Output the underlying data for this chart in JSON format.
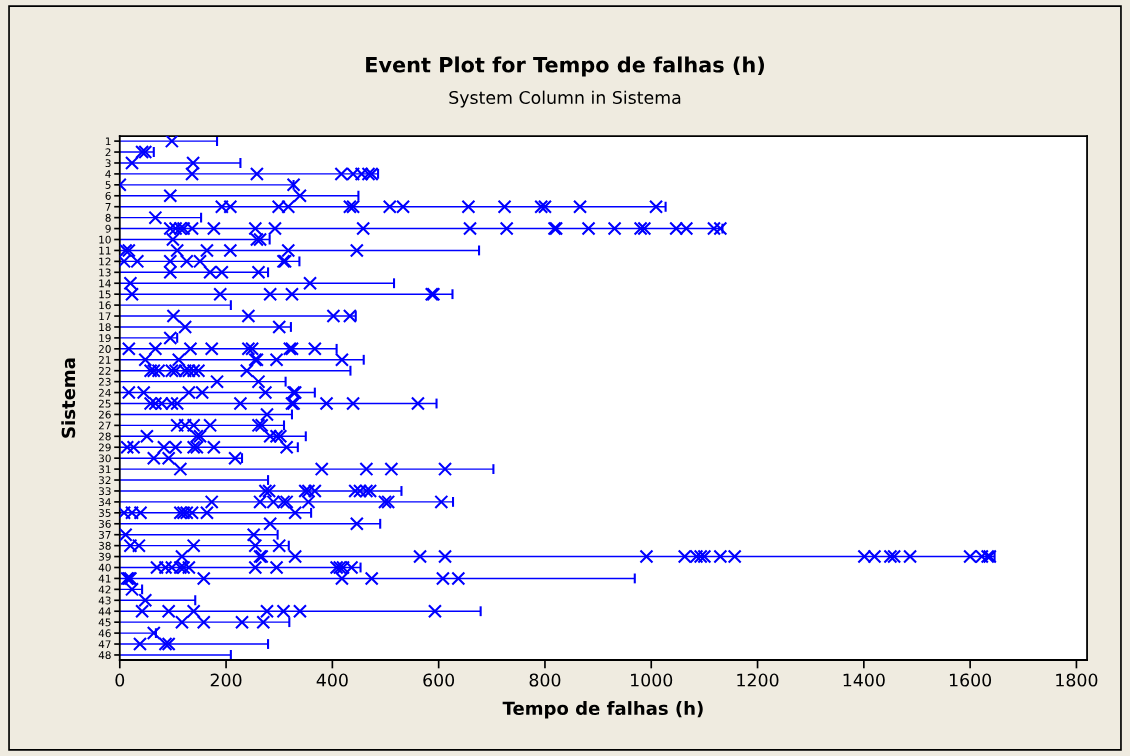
{
  "chart_data": {
    "type": "bar",
    "orientation": "horizontal",
    "title": "Event Plot for Tempo de falhas (h)",
    "subtitle": "System Column in Sistema",
    "xlabel": "Tempo de falhas (h)",
    "ylabel": "Sistema",
    "categories": [
      "1",
      "2",
      "3",
      "4",
      "5",
      "6",
      "7",
      "8",
      "9",
      "10",
      "11",
      "12",
      "13",
      "14",
      "15",
      "16",
      "17",
      "18",
      "19",
      "20",
      "21",
      "22",
      "23",
      "24",
      "25",
      "26",
      "27",
      "28",
      "29",
      "30",
      "31",
      "32",
      "33",
      "34",
      "35",
      "36",
      "37",
      "38",
      "39",
      "40",
      "41",
      "42",
      "43",
      "44",
      "45",
      "46",
      "47",
      "48"
    ],
    "xlim": [
      0,
      1820
    ],
    "xticks": [
      0,
      200,
      400,
      600,
      800,
      1000,
      1200,
      1400,
      1600,
      1800
    ],
    "grid": false,
    "legend": false,
    "series": [
      {
        "type": "bar",
        "color": "#0000ff",
        "values": [
          183,
          64,
          227,
          486,
          327,
          449,
          1027,
          153,
          1134,
          282,
          676,
          338,
          279,
          516,
          626,
          209,
          444,
          322,
          108,
          408,
          459,
          434,
          312,
          367,
          596,
          324,
          309,
          350,
          335,
          230,
          703,
          279,
          530,
          627,
          360,
          490,
          297,
          318,
          1646,
          453,
          969,
          42,
          142,
          679,
          319,
          68,
          279,
          209
        ]
      },
      {
        "type": "scatter",
        "color": "#0000ff",
        "marker": "cross",
        "x": [
          "1",
          "2",
          "2",
          "3",
          "3",
          "4",
          "4",
          "4",
          "4",
          "4",
          "4",
          "4",
          "5",
          "5",
          "6",
          "6",
          "7",
          "7",
          "7",
          "7",
          "7",
          "7",
          "7",
          "7",
          "7",
          "7",
          "7",
          "7",
          "7",
          "7",
          "8",
          "9",
          "9",
          "9",
          "9",
          "9",
          "9",
          "9",
          "9",
          "9",
          "9",
          "9",
          "9",
          "9",
          "9",
          "9",
          "9",
          "9",
          "9",
          "9",
          "9",
          "9",
          "10",
          "10",
          "10",
          "11",
          "11",
          "11",
          "11",
          "11",
          "11",
          "11",
          "12",
          "12",
          "12",
          "12",
          "12",
          "12",
          "12",
          "13",
          "13",
          "13",
          "13",
          "14",
          "14",
          "15",
          "15",
          "15",
          "15",
          "15",
          "15",
          "17",
          "17",
          "17",
          "17",
          "18",
          "18",
          "19",
          "20",
          "20",
          "20",
          "20",
          "20",
          "20",
          "20",
          "20",
          "20",
          "21",
          "21",
          "21",
          "21",
          "21",
          "21",
          "22",
          "22",
          "22",
          "22",
          "22",
          "22",
          "22",
          "22",
          "22",
          "22",
          "23",
          "23",
          "24",
          "24",
          "24",
          "24",
          "24",
          "24",
          "24",
          "25",
          "25",
          "25",
          "25",
          "25",
          "25",
          "25",
          "25",
          "25",
          "25",
          "25",
          "26",
          "27",
          "27",
          "27",
          "27",
          "27",
          "27",
          "28",
          "28",
          "28",
          "28",
          "28",
          "28",
          "29",
          "29",
          "29",
          "29",
          "29",
          "29",
          "29",
          "29",
          "30",
          "30",
          "30",
          "31",
          "31",
          "31",
          "31",
          "31",
          "33",
          "33",
          "33",
          "33",
          "33",
          "33",
          "33",
          "33",
          "33",
          "34",
          "34",
          "34",
          "34",
          "34",
          "34",
          "34",
          "34",
          "34",
          "35",
          "35",
          "35",
          "35",
          "35",
          "35",
          "35",
          "35",
          "35",
          "36",
          "36",
          "37",
          "37",
          "38",
          "38",
          "38",
          "38",
          "38",
          "39",
          "39",
          "39",
          "39",
          "39",
          "39",
          "39",
          "39",
          "39",
          "39",
          "39",
          "39",
          "39",
          "39",
          "39",
          "39",
          "39",
          "39",
          "39",
          "39",
          "39",
          "39",
          "40",
          "40",
          "40",
          "40",
          "40",
          "40",
          "40",
          "40",
          "40",
          "40",
          "40",
          "40",
          "41",
          "41",
          "41",
          "41",
          "41",
          "41",
          "41",
          "41",
          "42",
          "43",
          "44",
          "44",
          "44",
          "44",
          "44",
          "44",
          "44",
          "45",
          "45",
          "45",
          "45",
          "46",
          "47",
          "47",
          "47"
        ],
        "values": [
          98,
          42,
          48,
          23,
          138,
          136,
          258,
          417,
          439,
          455,
          468,
          474,
          0,
          327,
          95,
          339,
          192,
          208,
          299,
          317,
          433,
          439,
          508,
          533,
          656,
          724,
          793,
          800,
          866,
          1009,
          67,
          95,
          105,
          114,
          120,
          136,
          177,
          255,
          292,
          458,
          659,
          728,
          818,
          821,
          882,
          931,
          980,
          987,
          1047,
          1066,
          1118,
          1130,
          100,
          258,
          264,
          11,
          17,
          108,
          164,
          208,
          317,
          446,
          8,
          33,
          95,
          126,
          151,
          308,
          311,
          95,
          170,
          192,
          261,
          20,
          358,
          23,
          189,
          283,
          324,
          587,
          590,
          101,
          242,
          402,
          433,
          123,
          300,
          95,
          17,
          67,
          133,
          173,
          242,
          249,
          320,
          324,
          367,
          48,
          111,
          255,
          258,
          295,
          418,
          58,
          64,
          73,
          98,
          105,
          123,
          130,
          139,
          148,
          239,
          183,
          261,
          17,
          45,
          130,
          155,
          274,
          327,
          330,
          58,
          67,
          79,
          98,
          108,
          227,
          324,
          327,
          389,
          439,
          561,
          277,
          108,
          123,
          139,
          170,
          261,
          267,
          51,
          145,
          151,
          283,
          295,
          302,
          14,
          26,
          83,
          105,
          139,
          145,
          177,
          314,
          64,
          92,
          217,
          114,
          380,
          464,
          511,
          612,
          274,
          281,
          349,
          355,
          367,
          443,
          452,
          464,
          471,
          173,
          264,
          289,
          308,
          314,
          355,
          499,
          505,
          605,
          8,
          23,
          39,
          114,
          120,
          126,
          136,
          164,
          330,
          283,
          446,
          11,
          252,
          20,
          36,
          139,
          255,
          300,
          117,
          264,
          267,
          330,
          565,
          612,
          991,
          1063,
          1085,
          1093,
          1100,
          1130,
          1157,
          1401,
          1420,
          1450,
          1457,
          1487,
          1600,
          1622,
          1633,
          1637,
          70,
          86,
          98,
          114,
          120,
          130,
          255,
          295,
          408,
          414,
          420,
          436,
          14,
          17,
          20,
          158,
          418,
          474,
          608,
          637,
          23,
          48,
          42,
          92,
          139,
          277,
          308,
          339,
          593,
          117,
          158,
          230,
          270,
          64,
          38,
          86,
          92
        ]
      }
    ]
  }
}
